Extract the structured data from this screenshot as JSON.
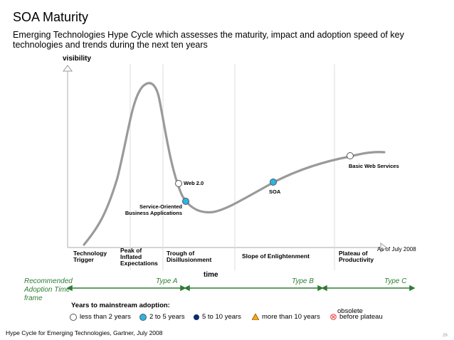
{
  "title": "SOA Maturity",
  "subtitle": "Emerging Technologies Hype Cycle which assesses the maturity, impact and adoption speed of key technologies and trends during the next ten years",
  "axes": {
    "y_label": "visibility",
    "x_label": "time"
  },
  "phases": [
    {
      "label": "Technology Trigger"
    },
    {
      "label": "Peak of Inflated Expectations"
    },
    {
      "label": "Trough of Disillusionment"
    },
    {
      "label": "Slope of Enlightenment"
    },
    {
      "label": "Plateau of Productivity"
    }
  ],
  "as_of": "As of July 2008",
  "technologies": [
    {
      "name": "Web 2.0",
      "years": "less than 2 years"
    },
    {
      "name": "Service-Oriented Business Applications",
      "years": "2 to 5 years"
    },
    {
      "name": "SOA",
      "years": "2 to 5 years"
    },
    {
      "name": "Basic Web Services",
      "years": "less than 2 years"
    }
  ],
  "adoption": {
    "label": "Recommended Adoption Time frame",
    "types": [
      "Type A",
      "Type B",
      "Type C"
    ]
  },
  "legend": {
    "title": "Years to mainstream adoption:",
    "items": [
      {
        "label": "less than 2 years",
        "color": "#ffffff"
      },
      {
        "label": "2 to 5 years",
        "color": "#29b6e6"
      },
      {
        "label": "5 to 10 years",
        "color": "#0d2a6b"
      },
      {
        "label": "more than 10 years",
        "color": "#f5a623"
      },
      {
        "label_top": "obsolete",
        "label": "before plateau",
        "color": "#e53935"
      }
    ]
  },
  "source": "Hype Cycle for Emerging Technologies, Gartner, July 2008",
  "page_number": "29"
}
